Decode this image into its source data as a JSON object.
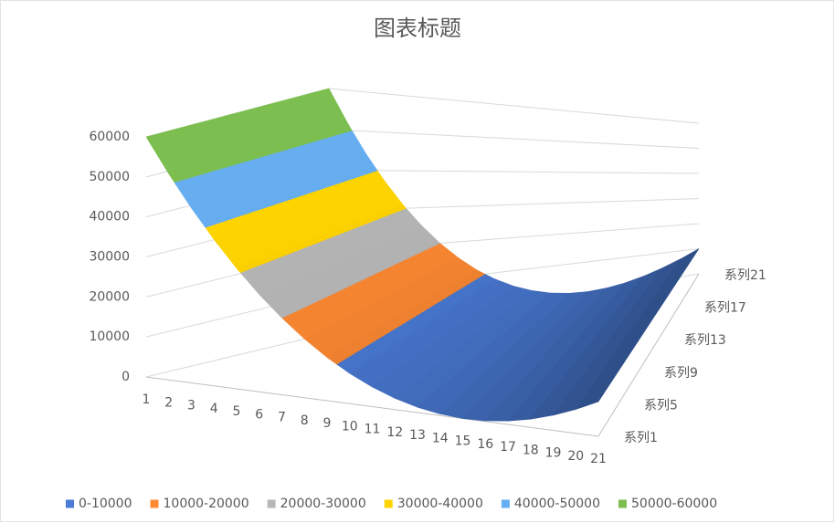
{
  "chart_data": {
    "type": "surface",
    "title": "图表标题",
    "categories": [
      "1",
      "2",
      "3",
      "4",
      "5",
      "6",
      "7",
      "8",
      "9",
      "10",
      "11",
      "12",
      "13",
      "14",
      "15",
      "16",
      "17",
      "18",
      "19",
      "20",
      "21"
    ],
    "series": [
      {
        "name": "系列1",
        "values": [
          60000,
          51850,
          44290,
          37330,
          30960,
          25190,
          20010,
          15430,
          11440,
          8050,
          5250,
          3050,
          1440,
          430,
          10,
          190,
          960,
          2330,
          4300,
          6860,
          10000
        ]
      },
      {
        "name": "系列5",
        "values": [
          60000,
          51850,
          44290,
          37330,
          30960,
          25190,
          20010,
          15430,
          11440,
          8050,
          5250,
          3050,
          1440,
          430,
          10,
          190,
          960,
          2330,
          4300,
          6860,
          10000
        ]
      },
      {
        "name": "系列9",
        "values": [
          60000,
          51850,
          44290,
          37330,
          30960,
          25190,
          20010,
          15430,
          11440,
          8050,
          5250,
          3050,
          1440,
          430,
          10,
          190,
          960,
          2330,
          4300,
          6860,
          10000
        ]
      },
      {
        "name": "系列13",
        "values": [
          60000,
          51850,
          44290,
          37330,
          30960,
          25190,
          20010,
          15430,
          11440,
          8050,
          5250,
          3050,
          1440,
          430,
          10,
          190,
          960,
          2330,
          4300,
          6860,
          10000
        ]
      },
      {
        "name": "系列17",
        "values": [
          60000,
          51850,
          44290,
          37330,
          30960,
          25190,
          20010,
          15430,
          11440,
          8050,
          5250,
          3050,
          1440,
          430,
          10,
          190,
          960,
          2330,
          4300,
          6860,
          10000
        ]
      },
      {
        "name": "系列21",
        "values": [
          60000,
          51850,
          44290,
          37330,
          30960,
          25190,
          20010,
          15430,
          11440,
          8050,
          5250,
          3050,
          1440,
          430,
          10,
          190,
          960,
          2330,
          4300,
          6860,
          10000
        ]
      }
    ],
    "zlim": [
      0,
      60000
    ],
    "zticks": [
      0,
      10000,
      20000,
      30000,
      40000,
      50000,
      60000
    ],
    "grid": true,
    "legend_position": "bottom",
    "bands": [
      {
        "name": "0-10000",
        "color": "#4a7bd6"
      },
      {
        "name": "10000-20000",
        "color": "#ff8a33"
      },
      {
        "name": "20000-30000",
        "color": "#b7b7b7"
      },
      {
        "name": "30000-40000",
        "color": "#ffd400"
      },
      {
        "name": "40000-50000",
        "color": "#66aef0"
      },
      {
        "name": "50000-60000",
        "color": "#7cbf50"
      }
    ]
  }
}
